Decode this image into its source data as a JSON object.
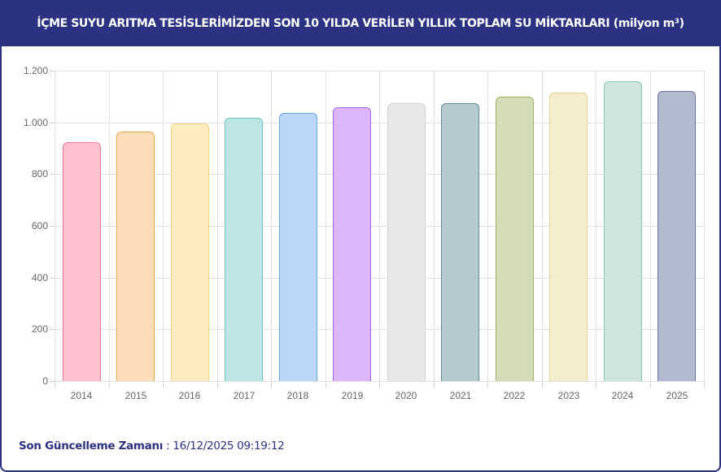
{
  "header": {
    "title": "İÇME SUYU ARITMA TESİSLERİMİZDEN SON 10 YILDA VERİLEN YILLIK TOPLAM SU MİKTARLARI (milyon m³)"
  },
  "footer": {
    "label": "Son Güncelleme Zamanı",
    "separator": " : ",
    "timestamp": "16/12/2025 09:19:12"
  },
  "colors": {
    "header_bg": "#2b3282",
    "footer_text": "#2b3282",
    "grid": "#e1e1e1",
    "axis_text": "#666666"
  },
  "chart_data": {
    "type": "bar",
    "title": "İÇME SUYU ARITMA TESİSLERİMİZDEN SON 10 YILDA VERİLEN YILLIK TOPLAM SU MİKTARLARI (milyon m³)",
    "xlabel": "",
    "ylabel": "milyon m³",
    "categories": [
      "2014",
      "2015",
      "2016",
      "2017",
      "2018",
      "2019",
      "2020",
      "2021",
      "2022",
      "2023",
      "2024",
      "2025"
    ],
    "values": [
      923,
      965,
      997,
      1019,
      1038,
      1060,
      1074,
      1073,
      1101,
      1115,
      1159,
      1123
    ],
    "ylim": [
      0,
      1200
    ],
    "y_ticks": [
      0,
      200,
      400,
      600,
      800,
      1000,
      1200
    ],
    "y_tick_labels": [
      "0",
      "200",
      "400",
      "600",
      "800",
      "1.000",
      "1.200"
    ],
    "grid": true,
    "legend": null,
    "bar_fill_colors": [
      "#fdc1cf",
      "#fddcb7",
      "#fcecbf",
      "#bde5e6",
      "#bbd6f6",
      "#dcb7fa",
      "#e7e8ea",
      "#b5cace",
      "#d3dcb6",
      "#f5ecce",
      "#cde5dd",
      "#b2bad0"
    ],
    "bar_border_colors": [
      "#f27c98",
      "#f2a952",
      "#f5d57a",
      "#6cc3c4",
      "#6aa3e6",
      "#a565ee",
      "#d1d3d6",
      "#5d8b92",
      "#9db166",
      "#e4d494",
      "#8fc8b6",
      "#6872a1"
    ]
  }
}
